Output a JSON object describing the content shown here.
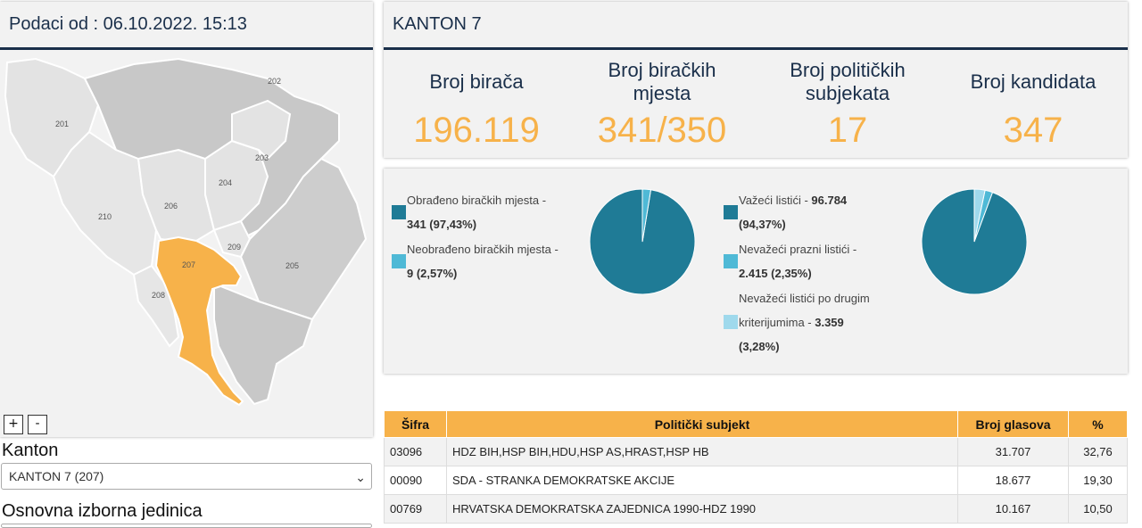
{
  "header": {
    "data_from": "Podaci od : 06.10.2022. 15:13"
  },
  "map": {
    "labels": [
      "201",
      "202",
      "203",
      "204",
      "205",
      "206",
      "207",
      "208",
      "209",
      "210"
    ],
    "highlight_color": "#f7b24a",
    "zoom_in": "+",
    "zoom_out": "-"
  },
  "filters": {
    "kanton_label": "Kanton",
    "kanton_value": "KANTON 7 (207)",
    "oij_label": "Osnovna izborna jedinica"
  },
  "kanton": {
    "title": "KANTON 7",
    "stats": [
      {
        "label": "Broj birača",
        "value": "196.119"
      },
      {
        "label": "Broj biračkih mjesta",
        "value": "341/350"
      },
      {
        "label": "Broj političkih subjekata",
        "value": "17"
      },
      {
        "label": "Broj kandidata",
        "value": "347"
      }
    ]
  },
  "charts": {
    "left_legend": [
      {
        "line1": "Obrađeno biračkih mjesta -",
        "line2": "341 (97,43%)",
        "color": "#1f7b96"
      },
      {
        "line1": "Neobrađeno biračkih mjesta -",
        "line2": "9 (2,57%)",
        "color": "#4fb9d6"
      }
    ],
    "right_legend": [
      {
        "line1_text": "Važeći listići - ",
        "line1_bold": "96.784",
        "line2": "(94,37%)",
        "color": "#1f7b96"
      },
      {
        "line1_text": "Nevažeći prazni listići -",
        "line1_bold": "",
        "line2": "2.415 (2,35%)",
        "color": "#4fb9d6"
      },
      {
        "line0": "Nevažeći listići po drugim",
        "line1_text": "kriterijumima - ",
        "line1_bold": "3.359",
        "line2": "(3,28%)",
        "color": "#9fd9ec"
      }
    ]
  },
  "chart_data": [
    {
      "type": "pie",
      "categories": [
        "Obrađeno biračkih mjesta",
        "Neobrađeno biračkih mjesta"
      ],
      "values": [
        97.43,
        2.57
      ],
      "colors": [
        "#1f7b96",
        "#4fb9d6"
      ]
    },
    {
      "type": "pie",
      "categories": [
        "Važeći listići",
        "Nevažeći prazni listići",
        "Nevažeći listići po drugim kriterijumima"
      ],
      "values": [
        94.37,
        2.35,
        3.28
      ],
      "colors": [
        "#1f7b96",
        "#4fb9d6",
        "#9fd9ec"
      ]
    }
  ],
  "table": {
    "headers": [
      "Šifra",
      "Politički subjekt",
      "Broj glasova",
      "%"
    ],
    "rows": [
      {
        "code": "03096",
        "name": "HDZ BIH,HSP BIH,HDU,HSP AS,HRAST,HSP HB",
        "votes": "31.707",
        "pct": "32,76"
      },
      {
        "code": "00090",
        "name": "SDA - STRANKA DEMOKRATSKE AKCIJE",
        "votes": "18.677",
        "pct": "19,30"
      },
      {
        "code": "00769",
        "name": "HRVATSKA DEMOKRATSKA ZAJEDNICA 1990-HDZ 1990",
        "votes": "10.167",
        "pct": "10,50"
      }
    ]
  }
}
